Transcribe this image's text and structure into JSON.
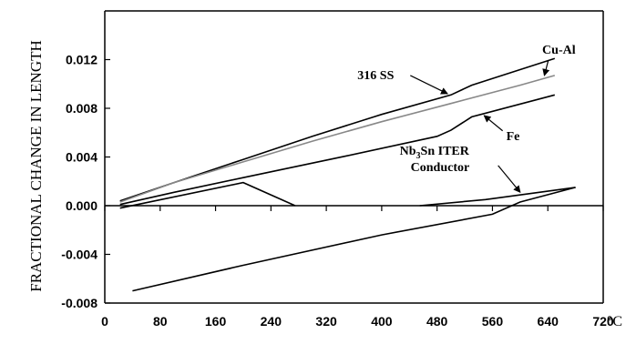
{
  "chart_data": {
    "type": "line",
    "title": "",
    "xlabel": "",
    "x_unit": "°C",
    "ylabel": "FRACTIONAL CHANGE IN LENGTH",
    "xlim": [
      0,
      720
    ],
    "ylim": [
      -0.008,
      0.016
    ],
    "x_ticks": [
      0,
      80,
      160,
      240,
      320,
      400,
      480,
      560,
      640,
      720
    ],
    "x_tick_labels": [
      "0",
      "80",
      "160",
      "240",
      "320",
      "400",
      "480",
      "560",
      "640",
      "720"
    ],
    "y_ticks": [
      -0.008,
      -0.004,
      0.0,
      0.004,
      0.008,
      0.012
    ],
    "y_tick_labels": [
      "-0.008",
      "-0.004",
      "0.000",
      "0.004",
      "0.008",
      "0.012"
    ],
    "grid": false,
    "series": [
      {
        "name": "316 SS",
        "color": "#000000",
        "x": [
          22,
          100,
          200,
          300,
          400,
          500,
          530,
          650
        ],
        "y": [
          0.0004,
          0.0019,
          0.0038,
          0.0057,
          0.0075,
          0.0091,
          0.0099,
          0.0121
        ]
      },
      {
        "name": "Cu-Al",
        "color": "#888888",
        "x": [
          22,
          100,
          200,
          300,
          400,
          500,
          600,
          650
        ],
        "y": [
          0.0003,
          0.0019,
          0.0036,
          0.0053,
          0.0069,
          0.0084,
          0.0099,
          0.0107
        ]
      },
      {
        "name": "Fe",
        "color": "#000000",
        "x": [
          22,
          100,
          200,
          250,
          350,
          480,
          500,
          530,
          650
        ],
        "y": [
          0.0001,
          0.0011,
          0.0023,
          0.0029,
          0.0041,
          0.0057,
          0.0062,
          0.0073,
          0.0091
        ]
      },
      {
        "name": "Nb3Sn ITER Conductor",
        "color": "#000000",
        "segments": [
          {
            "x": [
              22,
              200,
              275
            ],
            "y": [
              -0.0002,
              0.0019,
              0.0
            ]
          },
          {
            "x": [
              455,
              550,
              680
            ],
            "y": [
              0.0,
              0.0005,
              0.0015
            ]
          },
          {
            "x": [
              40,
              200,
              400,
              560,
              600,
              680
            ],
            "y": [
              -0.007,
              -0.0049,
              -0.0024,
              -0.0007,
              0.0003,
              0.0015
            ]
          }
        ]
      }
    ],
    "annotations": [
      {
        "id": "316ss",
        "text": "316 SS",
        "x": 365,
        "y": 0.0104,
        "arrow_to": [
          495,
          0.0092
        ]
      },
      {
        "id": "cual",
        "text": "Cu-Al",
        "x": 680,
        "y": 0.0125,
        "arrow_to": [
          635,
          0.0107
        ]
      },
      {
        "id": "fe",
        "text": "Fe",
        "x": 580,
        "y": 0.0054,
        "arrow_to": [
          548,
          0.0074
        ]
      },
      {
        "id": "nb3sn",
        "main": "Nb",
        "sub": "3",
        "rest": "Sn ITER",
        "line2": "Conductor",
        "x": 426,
        "y": 0.0042,
        "arrow_to": [
          600,
          0.0011
        ]
      }
    ]
  }
}
